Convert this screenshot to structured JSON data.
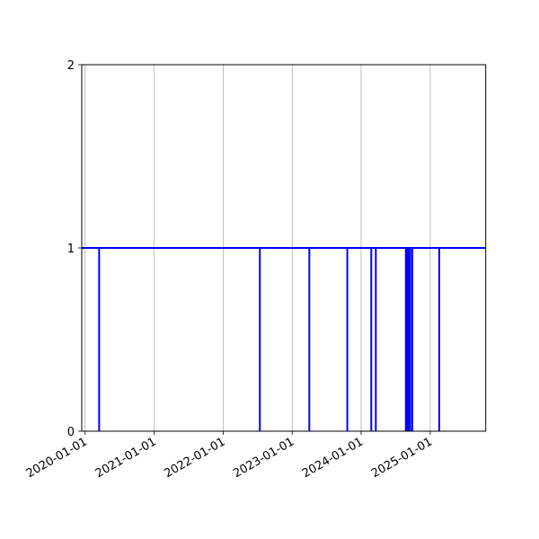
{
  "chart_data": {
    "type": "line",
    "title": "",
    "xlabel": "",
    "ylabel": "",
    "xlim": [
      "2019-12-14",
      "2025-10-22"
    ],
    "ylim": [
      0,
      2
    ],
    "grid": {
      "x": true,
      "y": false
    },
    "x_ticks": [
      "2020-01-01",
      "2021-01-01",
      "2022-01-01",
      "2023-01-01",
      "2024-01-01",
      "2025-01-01"
    ],
    "y_ticks": [
      "0",
      "1",
      "2"
    ],
    "line_color": "#0000ff",
    "baseline_value": 1,
    "drop_value": 0,
    "drop_dates": [
      "2020-03-15",
      "2022-07-14",
      "2023-04-02",
      "2023-10-20",
      "2024-02-24",
      "2024-03-19",
      "2024-08-25",
      "2024-08-30",
      "2024-09-05",
      "2024-09-11",
      "2024-09-17",
      "2024-09-28",
      "2025-02-18"
    ]
  }
}
